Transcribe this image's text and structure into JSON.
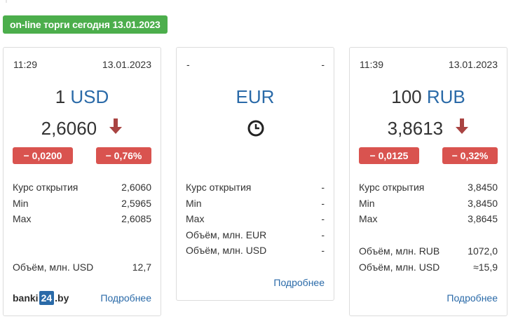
{
  "header": {
    "badge": "on-line торги сегодня 13.01.2023"
  },
  "cards": [
    {
      "time": "11:29",
      "date": "13.01.2023",
      "amount": "1",
      "code": "USD",
      "rate": "2,6060",
      "trend": "down",
      "change_abs": "− 0,0200",
      "change_pct": "− 0,76%",
      "stats": [
        {
          "label": "Курс открытия",
          "value": "2,6060"
        },
        {
          "label": "Min",
          "value": "2,5965"
        },
        {
          "label": "Max",
          "value": "2,6085"
        }
      ],
      "volume": [
        {
          "label": "Объём, млн. USD",
          "value": "12,7"
        }
      ],
      "more": "Подробнее",
      "logo": {
        "prefix": "banki",
        "box": "24",
        "suffix": ".by"
      }
    },
    {
      "time": "-",
      "date": "-",
      "amount": "",
      "code": "EUR",
      "status_icon": "clock-icon",
      "stats": [
        {
          "label": "Курс открытия",
          "value": "-"
        },
        {
          "label": "Min",
          "value": "-"
        },
        {
          "label": "Max",
          "value": "-"
        },
        {
          "label": "Объём, млн. EUR",
          "value": "-"
        },
        {
          "label": "Объём, млн. USD",
          "value": "-"
        }
      ],
      "more": "Подробнее"
    },
    {
      "time": "11:39",
      "date": "13.01.2023",
      "amount": "100",
      "code": "RUB",
      "rate": "3,8613",
      "trend": "down",
      "change_abs": "− 0,0125",
      "change_pct": "− 0,32%",
      "stats": [
        {
          "label": "Курс открытия",
          "value": "3,8450"
        },
        {
          "label": "Min",
          "value": "3,8450"
        },
        {
          "label": "Max",
          "value": "3,8645"
        }
      ],
      "volume": [
        {
          "label": "Объём, млн. RUB",
          "value": "1072,0"
        },
        {
          "label": "Объём, млн. USD",
          "value": "≈15,9"
        }
      ],
      "more": "Подробнее"
    }
  ],
  "colors": {
    "badge_green": "#4cae4c",
    "down_red": "#d9534f",
    "arrow_red": "#a94442",
    "link_blue": "#2a6aa8"
  }
}
